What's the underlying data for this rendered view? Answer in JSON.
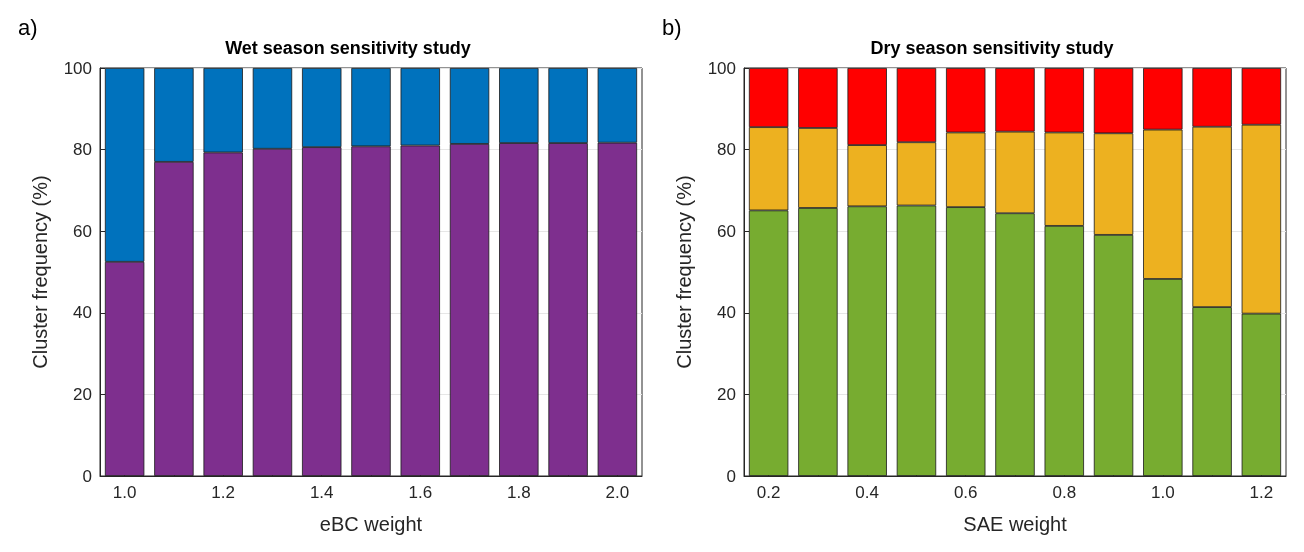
{
  "chart_data": [
    {
      "type": "bar",
      "title": "Wet season sensitivity study",
      "xlabel": "eBC weight",
      "ylabel": "Cluster frequency (%)",
      "annotations": [
        "a)"
      ],
      "stacked": true,
      "grid": "y",
      "categories": [
        "1.0",
        null,
        "1.2",
        null,
        "1.4",
        null,
        "1.6",
        null,
        "1.8",
        null,
        "2.0"
      ],
      "ylim": [
        0,
        100
      ],
      "yticks": [
        0,
        20,
        40,
        60,
        80,
        100
      ],
      "series": [
        {
          "color": "#7e2f8e",
          "values": [
            52.5,
            77,
            79.3,
            80.2,
            80.6,
            80.8,
            81,
            81.4,
            81.6,
            81.6,
            81.7
          ]
        },
        {
          "color": "#0072bd",
          "values": [
            47.5,
            23,
            20.7,
            19.8,
            19.4,
            19.2,
            19,
            18.6,
            18.4,
            18.4,
            18.3
          ]
        }
      ]
    },
    {
      "type": "bar",
      "title": "Dry season sensitivity study",
      "xlabel": "SAE weight",
      "ylabel": "Cluster frequency (%)",
      "annotations": [
        "b)"
      ],
      "stacked": true,
      "grid": "y",
      "categories": [
        "0.2",
        null,
        "0.4",
        null,
        "0.6",
        null,
        "0.8",
        null,
        "1.0",
        null,
        "1.2"
      ],
      "ylim": [
        0,
        100
      ],
      "yticks": [
        0,
        20,
        40,
        60,
        80,
        100
      ],
      "series": [
        {
          "color": "#77ac30",
          "values": [
            65.1,
            65.7,
            66.1,
            66.3,
            65.9,
            64.4,
            61.3,
            59.1,
            48.3,
            41.4,
            39.8
          ]
        },
        {
          "color": "#edb120",
          "values": [
            20.4,
            19.6,
            15,
            15.5,
            18.3,
            20,
            22.9,
            24.9,
            36.6,
            44.2,
            46.3
          ]
        },
        {
          "color": "#ff0000",
          "values": [
            14.5,
            14.7,
            18.9,
            18.2,
            15.8,
            15.6,
            15.8,
            16,
            15.1,
            14.4,
            13.9
          ]
        }
      ]
    }
  ]
}
